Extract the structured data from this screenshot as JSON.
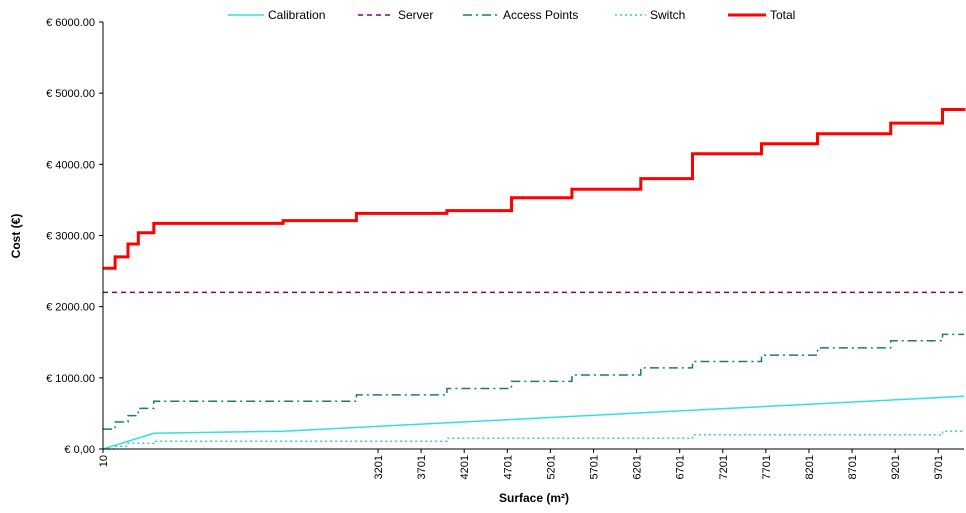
{
  "chart_data": {
    "type": "line",
    "title": "",
    "xlabel": "Surface (m²)",
    "ylabel": "Cost (€)",
    "xlim": [
      10,
      10000
    ],
    "ylim": [
      0,
      6000
    ],
    "x_ticks": [
      "10",
      "3201",
      "3701",
      "4201",
      "4701",
      "5201",
      "5701",
      "6201",
      "6701",
      "7201",
      "7701",
      "8201",
      "8701",
      "9201",
      "9701"
    ],
    "y_ticks": [
      {
        "value": 0,
        "label": "€ 0,00"
      },
      {
        "value": 1000,
        "label": "€ 1000.00"
      },
      {
        "value": 2000,
        "label": "€ 2000.00"
      },
      {
        "value": 3000,
        "label": "€ 3000.00"
      },
      {
        "value": 4000,
        "label": "€ 4000.00"
      },
      {
        "value": 5000,
        "label": "€ 5000.00"
      },
      {
        "value": 6000,
        "label": "€ 6000.00"
      }
    ],
    "grid": false,
    "legend_position": "top",
    "series": [
      {
        "name": "Calibration",
        "color": "#33e0e0",
        "style": "solid",
        "x": [
          10,
          600,
          2100,
          10000
        ],
        "y": [
          0,
          220,
          250,
          740
        ]
      },
      {
        "name": "Server",
        "color": "#800080",
        "style": "dashed",
        "x": [
          10,
          10000
        ],
        "y": [
          2200,
          2200
        ]
      },
      {
        "name": "Access Points",
        "color": "#1a7a7a",
        "style": "dashdot",
        "step": true,
        "x": [
          10,
          150,
          300,
          420,
          600,
          2100,
          2950,
          4000,
          4750,
          5450,
          6250,
          6850,
          7650,
          8300,
          9150,
          9750,
          10000
        ],
        "y": [
          280,
          380,
          470,
          570,
          670,
          670,
          760,
          850,
          950,
          1040,
          1140,
          1230,
          1320,
          1420,
          1520,
          1610,
          1610
        ]
      },
      {
        "name": "Switch",
        "color": "#33c8e0",
        "style": "dotted",
        "step": true,
        "x": [
          10,
          150,
          300,
          600,
          4000,
          6850,
          9750,
          10000
        ],
        "y": [
          0,
          40,
          80,
          110,
          150,
          200,
          250,
          250
        ]
      },
      {
        "name": "Total",
        "color": "#ff0000",
        "style": "solid",
        "step": true,
        "x": [
          10,
          150,
          300,
          420,
          600,
          2100,
          2950,
          4000,
          4750,
          5450,
          6250,
          6850,
          7650,
          8300,
          9150,
          9750,
          10000
        ],
        "y": [
          2540,
          2700,
          2880,
          3040,
          3170,
          3210,
          3310,
          3350,
          3530,
          3650,
          3800,
          4150,
          4290,
          4430,
          4580,
          4770,
          4790
        ]
      }
    ]
  }
}
